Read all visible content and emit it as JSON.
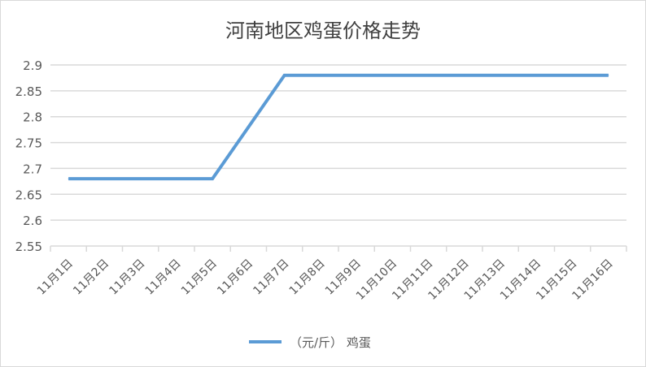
{
  "chart_data": {
    "type": "line",
    "title": "河南地区鸡蛋价格走势",
    "categories": [
      "11月1日",
      "11月2日",
      "11月3日",
      "11月4日",
      "11月5日",
      "11月6日",
      "11月7日",
      "11月8日",
      "11月9日",
      "11月10日",
      "11月11日",
      "11月12日",
      "11月13日",
      "11月14日",
      "11月15日",
      "11月16日"
    ],
    "series": [
      {
        "name": "（元/斤） 鸡蛋",
        "values": [
          2.68,
          2.68,
          2.68,
          2.68,
          2.68,
          2.78,
          2.88,
          2.88,
          2.88,
          2.88,
          2.88,
          2.88,
          2.88,
          2.88,
          2.88,
          2.88
        ],
        "color": "#5b9bd5"
      }
    ],
    "ylim": [
      2.55,
      2.9
    ],
    "yticks": [
      "2.55",
      "2.6",
      "2.65",
      "2.7",
      "2.75",
      "2.8",
      "2.85",
      "2.9"
    ],
    "grid": true,
    "legend": "bottom",
    "xlabel": "",
    "ylabel": ""
  }
}
